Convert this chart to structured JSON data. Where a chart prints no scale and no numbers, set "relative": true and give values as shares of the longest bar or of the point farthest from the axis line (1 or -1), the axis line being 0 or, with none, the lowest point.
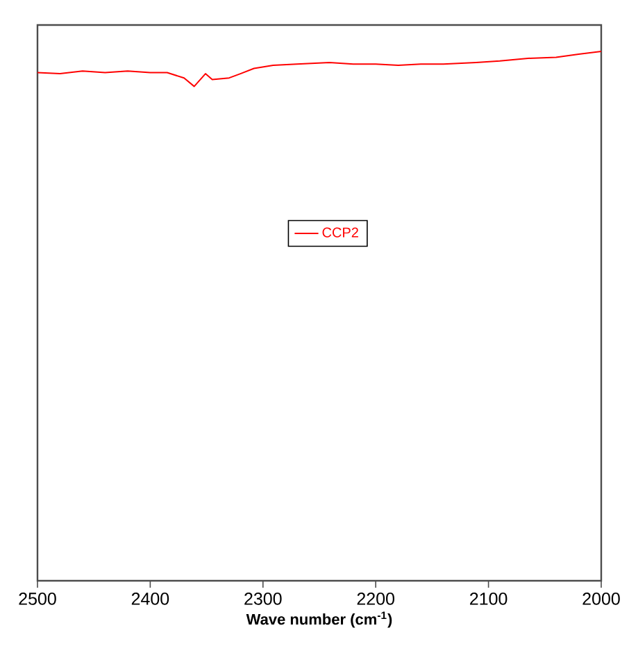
{
  "chart_data": {
    "type": "line",
    "xlabel": "Wave number (cm$^{-1}$)",
    "relative": true,
    "xlim": [
      2500,
      2000
    ],
    "xticks": [
      2500,
      2400,
      2300,
      2200,
      2100,
      2000
    ],
    "legend": "center",
    "grid": false,
    "marker": "none",
    "line_style": "solid",
    "x": [
      2500,
      2480,
      2460,
      2440,
      2420,
      2400,
      2385,
      2370,
      2361,
      2351,
      2345,
      2330,
      2320,
      2308,
      2291,
      2270,
      2241,
      2220,
      2200,
      2180,
      2160,
      2140,
      2111,
      2090,
      2065,
      2040,
      2020,
      2000
    ],
    "series": [
      {
        "name": "CCP2",
        "color": "#ff0000",
        "values": [
          0.96,
          0.958,
          0.963,
          0.96,
          0.963,
          0.96,
          0.96,
          0.95,
          0.934,
          0.958,
          0.947,
          0.95,
          0.958,
          0.968,
          0.974,
          0.976,
          0.979,
          0.976,
          0.976,
          0.974,
          0.976,
          0.976,
          0.979,
          0.982,
          0.987,
          0.989,
          0.995,
          1.0
        ]
      }
    ]
  }
}
